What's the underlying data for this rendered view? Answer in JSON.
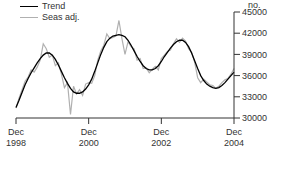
{
  "chart_data": {
    "type": "line",
    "y_label": "no.",
    "legend": "top-left",
    "grid": false,
    "ylim": [
      30000,
      45000
    ],
    "yticks": [
      30000,
      33000,
      36000,
      39000,
      42000,
      45000
    ],
    "categories": [
      "Dec 1998",
      null,
      null,
      null,
      null,
      null,
      null,
      null,
      null,
      null,
      null,
      null,
      null,
      null,
      null,
      null,
      null,
      null,
      null,
      null,
      null,
      null,
      null,
      null,
      "Dec 2000",
      null,
      null,
      null,
      null,
      null,
      null,
      null,
      null,
      null,
      null,
      null,
      null,
      null,
      null,
      null,
      null,
      null,
      null,
      null,
      null,
      null,
      null,
      null,
      "Dec 2002",
      null,
      null,
      null,
      null,
      null,
      null,
      null,
      null,
      null,
      null,
      null,
      null,
      null,
      null,
      null,
      null,
      null,
      null,
      null,
      null,
      null,
      null,
      null,
      "Dec 2004"
    ],
    "series": [
      {
        "name": "Trend",
        "color": "#000000",
        "values": [
          31500,
          32500,
          33600,
          34700,
          35600,
          36400,
          37100,
          37800,
          38400,
          38900,
          39200,
          39200,
          38900,
          38300,
          37500,
          36600,
          35700,
          34900,
          34200,
          33700,
          33500,
          33500,
          33700,
          34100,
          34700,
          35500,
          36600,
          37800,
          39000,
          40000,
          40800,
          41300,
          41600,
          41700,
          41800,
          41700,
          41500,
          41000,
          40300,
          39500,
          38700,
          38000,
          37400,
          37000,
          36800,
          36800,
          37000,
          37400,
          38000,
          38700,
          39300,
          39900,
          40400,
          40800,
          41000,
          41000,
          40700,
          40100,
          39200,
          38100,
          37000,
          36000,
          35300,
          34800,
          34500,
          34300,
          34200,
          34300,
          34600,
          35000,
          35500,
          36000,
          36500
        ]
      },
      {
        "name": "Seas adj.",
        "color": "#b0b0b0",
        "values": [
          31400,
          32800,
          34000,
          35200,
          35800,
          36800,
          36500,
          37200,
          38200,
          40500,
          39800,
          38600,
          38900,
          37400,
          37800,
          36200,
          34300,
          35000,
          30500,
          34500,
          33400,
          34000,
          33200,
          34800,
          35000,
          34900,
          36000,
          38200,
          39500,
          40300,
          41900,
          41200,
          41400,
          41600,
          43800,
          41200,
          39000,
          40800,
          40100,
          39800,
          38200,
          38400,
          37000,
          37100,
          36400,
          36900,
          37300,
          36800,
          38400,
          38900,
          39400,
          39600,
          40500,
          41200,
          40700,
          41300,
          40900,
          39800,
          39300,
          37900,
          35700,
          35000,
          35500,
          35100,
          34700,
          34600,
          34200,
          34500,
          35000,
          35400,
          35600,
          36200,
          37000
        ]
      }
    ]
  }
}
